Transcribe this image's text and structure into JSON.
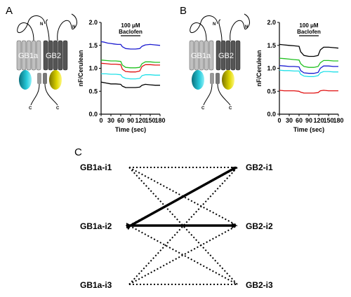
{
  "panels": {
    "a": "A",
    "b": "B",
    "c": "C"
  },
  "cartoon": {
    "subunit_1": "GB1a",
    "subunit_2": "GB2",
    "n_label": "N",
    "c_label": "C",
    "colors": {
      "gb1": "#b8b8b8",
      "gb2": "#555555",
      "cyan": "#19b6c8",
      "yellow": "#d8d000"
    }
  },
  "chart_data": [
    {
      "type": "line",
      "panel": "A",
      "xlabel": "Time (sec)",
      "ylabel": "nF/Cerulean",
      "xlim": [
        0,
        180
      ],
      "ylim": [
        0.0,
        2.0
      ],
      "xticks": [
        0,
        30,
        60,
        90,
        120,
        150,
        180
      ],
      "yticks": [
        0.0,
        0.5,
        1.0,
        1.5,
        2.0
      ],
      "annotation": {
        "line1": "100 μM",
        "line2": "Baclofen",
        "x_start": 60,
        "x_end": 120
      },
      "series": [
        {
          "color": "#1a1ad0",
          "points": [
            [
              0,
              1.58
            ],
            [
              10,
              1.57
            ],
            [
              20,
              1.55
            ],
            [
              30,
              1.54
            ],
            [
              40,
              1.53
            ],
            [
              50,
              1.52
            ],
            [
              60,
              1.52
            ],
            [
              65,
              1.47
            ],
            [
              75,
              1.43
            ],
            [
              90,
              1.42
            ],
            [
              105,
              1.42
            ],
            [
              118,
              1.43
            ],
            [
              125,
              1.48
            ],
            [
              135,
              1.51
            ],
            [
              150,
              1.52
            ],
            [
              165,
              1.51
            ],
            [
              180,
              1.5
            ]
          ]
        },
        {
          "color": "#20c020",
          "points": [
            [
              0,
              1.18
            ],
            [
              15,
              1.17
            ],
            [
              30,
              1.16
            ],
            [
              45,
              1.16
            ],
            [
              60,
              1.15
            ],
            [
              65,
              1.07
            ],
            [
              75,
              1.02
            ],
            [
              90,
              1.01
            ],
            [
              105,
              1.01
            ],
            [
              118,
              1.02
            ],
            [
              125,
              1.1
            ],
            [
              135,
              1.14
            ],
            [
              150,
              1.14
            ],
            [
              165,
              1.13
            ],
            [
              180,
              1.13
            ]
          ]
        },
        {
          "color": "#e01010",
          "points": [
            [
              0,
              1.11
            ],
            [
              15,
              1.1
            ],
            [
              30,
              1.09
            ],
            [
              45,
              1.09
            ],
            [
              60,
              1.08
            ],
            [
              65,
              0.98
            ],
            [
              75,
              0.93
            ],
            [
              90,
              0.92
            ],
            [
              105,
              0.92
            ],
            [
              118,
              0.94
            ],
            [
              125,
              1.04
            ],
            [
              135,
              1.08
            ],
            [
              150,
              1.08
            ],
            [
              165,
              1.07
            ],
            [
              180,
              1.07
            ]
          ]
        },
        {
          "color": "#20e0e8",
          "points": [
            [
              0,
              0.88
            ],
            [
              15,
              0.88
            ],
            [
              30,
              0.87
            ],
            [
              45,
              0.87
            ],
            [
              60,
              0.86
            ],
            [
              65,
              0.81
            ],
            [
              75,
              0.78
            ],
            [
              90,
              0.77
            ],
            [
              105,
              0.77
            ],
            [
              118,
              0.78
            ],
            [
              125,
              0.84
            ],
            [
              135,
              0.86
            ],
            [
              150,
              0.86
            ],
            [
              165,
              0.85
            ],
            [
              180,
              0.85
            ]
          ]
        },
        {
          "color": "#000000",
          "points": [
            [
              0,
              0.7
            ],
            [
              15,
              0.68
            ],
            [
              30,
              0.66
            ],
            [
              45,
              0.66
            ],
            [
              60,
              0.65
            ],
            [
              65,
              0.61
            ],
            [
              75,
              0.58
            ],
            [
              90,
              0.58
            ],
            [
              105,
              0.58
            ],
            [
              118,
              0.59
            ],
            [
              125,
              0.63
            ],
            [
              135,
              0.65
            ],
            [
              150,
              0.64
            ],
            [
              165,
              0.63
            ],
            [
              180,
              0.63
            ]
          ]
        }
      ]
    },
    {
      "type": "line",
      "panel": "B",
      "xlabel": "Time (sec)",
      "ylabel": "nF/Cerulean",
      "xlim": [
        0,
        180
      ],
      "ylim": [
        0.0,
        2.0
      ],
      "xticks": [
        0,
        30,
        60,
        90,
        120,
        150,
        180
      ],
      "yticks": [
        0.0,
        0.5,
        1.0,
        1.5,
        2.0
      ],
      "annotation": {
        "line1": "100 μM",
        "line2": "Baclofen",
        "x_start": 60,
        "x_end": 120
      },
      "series": [
        {
          "color": "#000000",
          "points": [
            [
              0,
              1.52
            ],
            [
              15,
              1.51
            ],
            [
              30,
              1.5
            ],
            [
              45,
              1.49
            ],
            [
              60,
              1.48
            ],
            [
              65,
              1.36
            ],
            [
              75,
              1.28
            ],
            [
              90,
              1.26
            ],
            [
              105,
              1.26
            ],
            [
              118,
              1.28
            ],
            [
              125,
              1.4
            ],
            [
              135,
              1.46
            ],
            [
              150,
              1.46
            ],
            [
              165,
              1.45
            ],
            [
              180,
              1.44
            ]
          ]
        },
        {
          "color": "#20c020",
          "points": [
            [
              0,
              1.22
            ],
            [
              15,
              1.21
            ],
            [
              30,
              1.2
            ],
            [
              45,
              1.19
            ],
            [
              60,
              1.18
            ],
            [
              65,
              1.1
            ],
            [
              75,
              1.04
            ],
            [
              90,
              1.02
            ],
            [
              105,
              1.02
            ],
            [
              118,
              1.04
            ],
            [
              125,
              1.12
            ],
            [
              135,
              1.17
            ],
            [
              150,
              1.17
            ],
            [
              165,
              1.16
            ],
            [
              180,
              1.16
            ]
          ]
        },
        {
          "color": "#1a1ad0",
          "points": [
            [
              0,
              1.06
            ],
            [
              15,
              1.05
            ],
            [
              30,
              1.04
            ],
            [
              45,
              1.04
            ],
            [
              60,
              1.03
            ],
            [
              65,
              0.95
            ],
            [
              75,
              0.9
            ],
            [
              90,
              0.89
            ],
            [
              105,
              0.89
            ],
            [
              118,
              0.91
            ],
            [
              125,
              1.0
            ],
            [
              135,
              1.05
            ],
            [
              150,
              1.05
            ],
            [
              165,
              1.04
            ],
            [
              180,
              1.04
            ]
          ]
        },
        {
          "color": "#20e0e8",
          "points": [
            [
              0,
              0.96
            ],
            [
              15,
              0.95
            ],
            [
              30,
              0.95
            ],
            [
              45,
              0.94
            ],
            [
              60,
              0.94
            ],
            [
              65,
              0.87
            ],
            [
              75,
              0.83
            ],
            [
              90,
              0.82
            ],
            [
              105,
              0.82
            ],
            [
              118,
              0.84
            ],
            [
              125,
              0.9
            ],
            [
              135,
              0.93
            ],
            [
              150,
              0.93
            ],
            [
              165,
              0.92
            ],
            [
              180,
              0.92
            ]
          ]
        },
        {
          "color": "#e01010",
          "points": [
            [
              0,
              0.52
            ],
            [
              15,
              0.51
            ],
            [
              30,
              0.51
            ],
            [
              45,
              0.51
            ],
            [
              60,
              0.5
            ],
            [
              65,
              0.48
            ],
            [
              75,
              0.46
            ],
            [
              90,
              0.46
            ],
            [
              105,
              0.46
            ],
            [
              118,
              0.47
            ],
            [
              125,
              0.51
            ],
            [
              135,
              0.52
            ],
            [
              150,
              0.51
            ],
            [
              165,
              0.51
            ],
            [
              180,
              0.51
            ]
          ]
        }
      ]
    }
  ],
  "diagram": {
    "left_nodes": [
      "GB1a-i1",
      "GB1a-i2",
      "GB1a-i3"
    ],
    "right_nodes": [
      "GB2-i1",
      "GB2-i2",
      "GB2-i3"
    ],
    "dotted_links": [
      [
        0,
        0
      ],
      [
        0,
        1
      ],
      [
        0,
        2
      ],
      [
        1,
        0
      ],
      [
        1,
        2
      ],
      [
        2,
        0
      ],
      [
        2,
        1
      ],
      [
        2,
        2
      ]
    ],
    "arrow_links": [
      {
        "from": "GB1a-i2",
        "to": "GB2-i1"
      },
      {
        "from": "GB1a-i2",
        "to": "GB2-i2"
      }
    ]
  }
}
